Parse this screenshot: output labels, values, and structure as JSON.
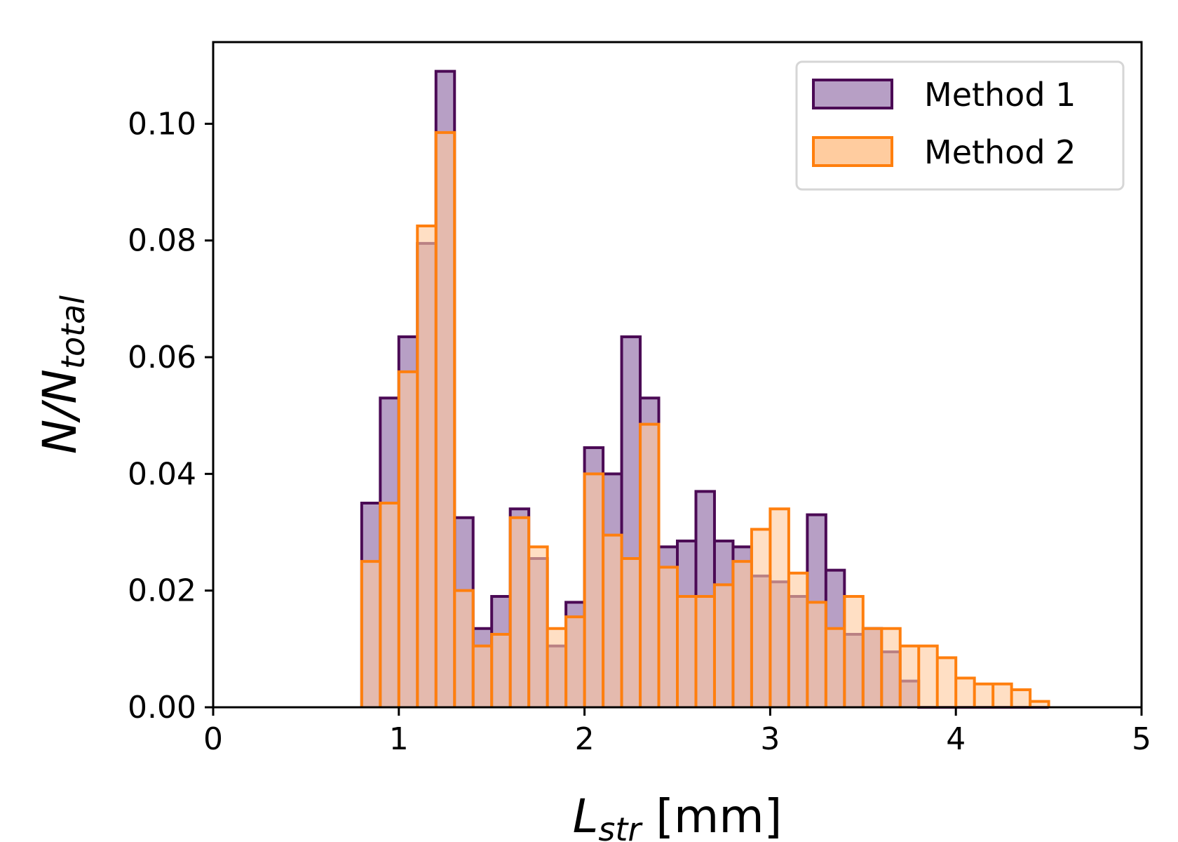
{
  "chart_data": {
    "type": "histogram",
    "title": "",
    "bin_start": 0.8,
    "bin_width": 0.1,
    "xlim": [
      0,
      5
    ],
    "ylim": [
      0,
      0.114
    ],
    "x_ticks": [
      "0",
      "1",
      "2",
      "3",
      "4",
      "5"
    ],
    "y_ticks": [
      "0.00",
      "0.02",
      "0.04",
      "0.06",
      "0.08",
      "0.10"
    ],
    "xlabel": {
      "symbol": "L",
      "subscript": "str",
      "unit": " [mm]"
    },
    "ylabel": {
      "numerator": "N",
      "slash": "/",
      "denominator": "N",
      "subscript": "total"
    },
    "legend_position": "top-right",
    "series": [
      {
        "name": "Method 1",
        "edge_color": "#4b0a55",
        "fill_color": "#b79fc5",
        "values": [
          0.035,
          0.053,
          0.0635,
          0.0795,
          0.109,
          0.0325,
          0.0135,
          0.019,
          0.034,
          0.0255,
          0.0105,
          0.018,
          0.0445,
          0.04,
          0.0635,
          0.053,
          0.0275,
          0.0285,
          0.037,
          0.0285,
          0.0275,
          0.0225,
          0.0215,
          0.019,
          0.033,
          0.0235,
          0.0125,
          0.0135,
          0.0095,
          0.0045,
          0,
          0,
          0,
          0,
          0,
          0,
          0
        ]
      },
      {
        "name": "Method 2",
        "edge_color": "#ff7f0e",
        "fill_color": "#ffcc9f",
        "values": [
          0.025,
          0.035,
          0.0575,
          0.0825,
          0.0985,
          0.02,
          0.0105,
          0.0125,
          0.0325,
          0.0275,
          0.0135,
          0.0155,
          0.04,
          0.0295,
          0.0255,
          0.0485,
          0.024,
          0.019,
          0.019,
          0.021,
          0.025,
          0.0305,
          0.034,
          0.023,
          0.018,
          0.0135,
          0.019,
          0.0135,
          0.0135,
          0.0105,
          0.0105,
          0.0085,
          0.005,
          0.004,
          0.004,
          0.003,
          0.001
        ]
      }
    ]
  }
}
